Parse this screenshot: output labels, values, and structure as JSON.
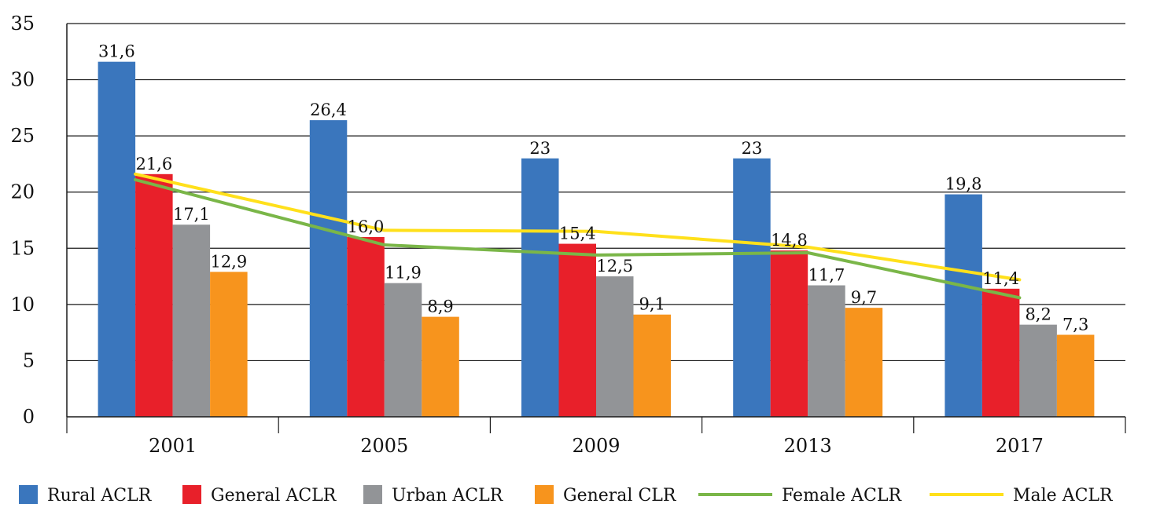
{
  "chart_data": {
    "type": "bar",
    "categories": [
      "2001",
      "2005",
      "2009",
      "2013",
      "2017"
    ],
    "ylim": [
      0,
      35
    ],
    "yticks": [
      0,
      5,
      10,
      15,
      20,
      25,
      30,
      35
    ],
    "grid": true,
    "legend_position": "bottom",
    "bar_series": [
      {
        "name": "Rural ACLR",
        "color": "#3a76bd",
        "values": [
          31.6,
          26.4,
          23,
          23,
          19.8
        ],
        "labels": [
          "31,6",
          "26,4",
          "23",
          "23",
          "19,8"
        ]
      },
      {
        "name": "General ACLR",
        "color": "#e8202a",
        "values": [
          21.6,
          16.0,
          15.4,
          14.8,
          11.4
        ],
        "labels": [
          "21,6",
          "16,0",
          "15,4",
          "14,8",
          "11,4"
        ]
      },
      {
        "name": "Urban ACLR",
        "color": "#929497",
        "values": [
          17.1,
          11.9,
          12.5,
          11.7,
          8.2
        ],
        "labels": [
          "17,1",
          "11,9",
          "12,5",
          "11,7",
          "8,2"
        ]
      },
      {
        "name": "General CLR",
        "color": "#f7941d",
        "values": [
          12.9,
          8.9,
          9.1,
          9.7,
          7.3
        ],
        "labels": [
          "12,9",
          "8,9",
          "9,1",
          "9,7",
          "7,3"
        ]
      }
    ],
    "line_series": [
      {
        "name": "Female ACLR",
        "color": "#7ab648",
        "values": [
          21.1,
          15.3,
          14.4,
          14.6,
          10.6
        ]
      },
      {
        "name": "Male ACLR",
        "color": "#ffe01b",
        "values": [
          21.6,
          16.6,
          16.5,
          15.1,
          12.2
        ]
      }
    ]
  }
}
